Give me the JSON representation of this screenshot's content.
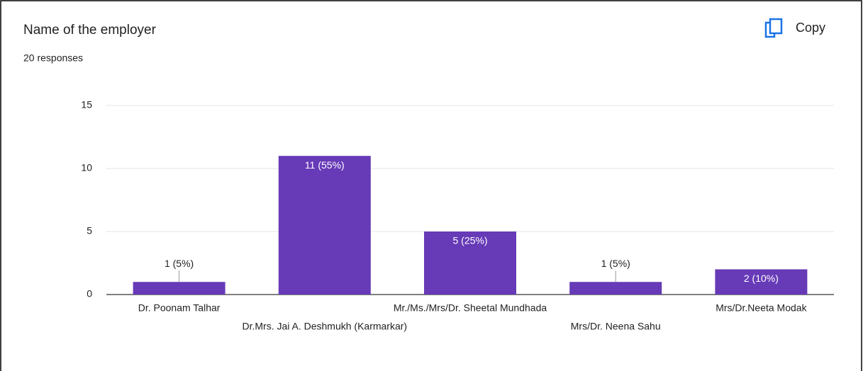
{
  "chart_data": {
    "type": "bar",
    "title": "Name of the employer",
    "subtitle": "20 responses",
    "button": "Copy",
    "categories": [
      "Dr. Poonam Talhar",
      "Dr.Mrs. Jai A. Deshmukh (Karmarkar)",
      "Mr./Ms./Mrs/Dr. Sheetal Mundhada",
      "Mrs/Dr. Neena Sahu",
      "Mrs/Dr.Neeta Modak"
    ],
    "values": [
      1,
      11,
      5,
      1,
      2
    ],
    "value_labels": [
      "1 (5%)",
      "11 (55%)",
      "5 (25%)",
      "1 (5%)",
      "2 (10%)"
    ],
    "color": "#673ab7",
    "ylim": [
      0,
      15
    ],
    "yticks": [
      0,
      5,
      10,
      15
    ],
    "grid": true
  }
}
